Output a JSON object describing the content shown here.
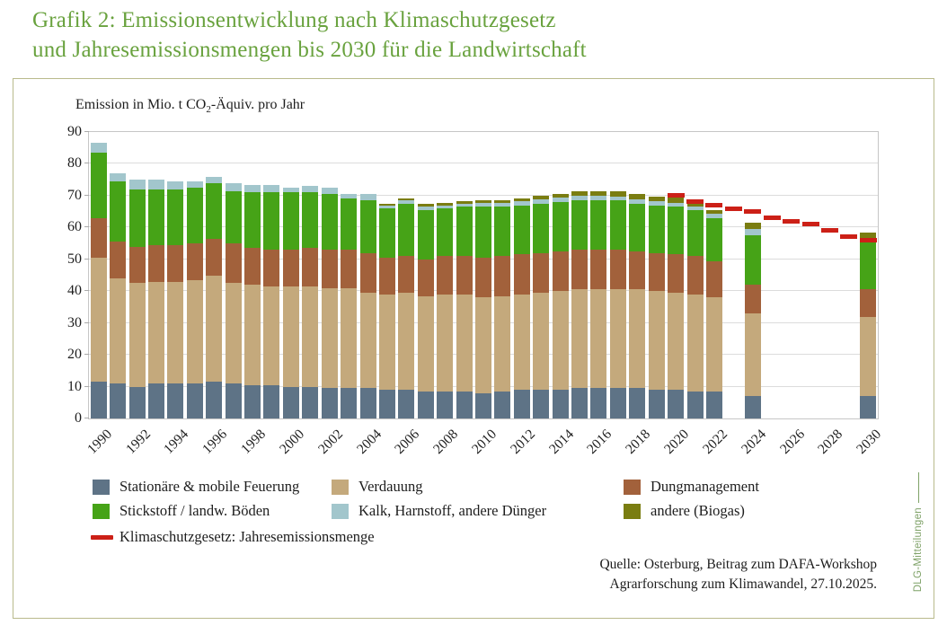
{
  "title": {
    "line1": "Grafik 2: Emissionsentwicklung nach Klimaschutzgesetz",
    "line2": "und Jahresemissionsmengen bis 2030 für die Landwirtschaft"
  },
  "axis_title": {
    "prefix": "Emission in Mio. t CO",
    "sub": "2",
    "suffix": "-Äquiv. pro Jahr"
  },
  "chart_data": {
    "type": "bar",
    "stacked": true,
    "title": "Emissionsentwicklung nach Klimaschutzgesetz und Jahresemissionsmengen bis 2030 für die Landwirtschaft",
    "ylabel": "Emission in Mio. t CO2-Äquiv. pro Jahr",
    "ylim": [
      0,
      90
    ],
    "y_tick_step": 10,
    "x_range": [
      1990,
      2030
    ],
    "x_tick_step": 2,
    "grid": true,
    "legend_position": "bottom",
    "bar_years": [
      1990,
      1991,
      1992,
      1993,
      1994,
      1995,
      1996,
      1997,
      1998,
      1999,
      2000,
      2001,
      2002,
      2003,
      2004,
      2005,
      2006,
      2007,
      2008,
      2009,
      2010,
      2011,
      2012,
      2013,
      2014,
      2015,
      2016,
      2017,
      2018,
      2019,
      2020,
      2021,
      2022,
      2024,
      2030
    ],
    "series": [
      {
        "name": "Stationäre & mobile Feuerung",
        "color": "#5e7386",
        "values": [
          11.5,
          11,
          10,
          11,
          11,
          11,
          11.5,
          11,
          10.5,
          10.5,
          10,
          10,
          9.5,
          9.5,
          9.5,
          9,
          9,
          8.5,
          8.5,
          8.5,
          8,
          8.5,
          9,
          9,
          9,
          9.5,
          9.5,
          9.5,
          9.5,
          9,
          9,
          8.5,
          8.5,
          7,
          7
        ]
      },
      {
        "name": "Verdauung",
        "color": "#c4a97c",
        "values": [
          39,
          33,
          32.5,
          32,
          32,
          32.5,
          33.5,
          31.5,
          31.5,
          31,
          31.5,
          31.5,
          31.5,
          31.5,
          30,
          30,
          30.5,
          30,
          30.5,
          30.5,
          30,
          30,
          30,
          30.5,
          31,
          31,
          31,
          31,
          31,
          31,
          30.5,
          30.5,
          29.5,
          26,
          25
        ]
      },
      {
        "name": "Dungmanagement",
        "color": "#a2613b",
        "values": [
          12.5,
          11.5,
          11.5,
          11.5,
          11.5,
          11.5,
          11.5,
          12.5,
          11.5,
          11.5,
          11.5,
          12,
          12,
          12,
          12.5,
          11.5,
          11.5,
          11.5,
          12,
          12,
          12.5,
          12.5,
          12.5,
          12.5,
          12.5,
          12.5,
          12.5,
          12.5,
          12,
          12,
          12,
          12,
          11.5,
          9,
          8.5
        ]
      },
      {
        "name": "Stickstoff / landw. Böden",
        "color": "#46a317",
        "values": [
          20.5,
          19,
          18,
          17.5,
          17.5,
          17.5,
          17.5,
          16.5,
          17.5,
          18,
          18,
          17.5,
          17.5,
          16,
          16.5,
          15.5,
          16.5,
          15.5,
          15,
          15.5,
          16,
          15.5,
          15.5,
          15.5,
          15.5,
          15.5,
          15.5,
          15.5,
          15,
          15,
          15,
          14.5,
          13.5,
          15.5,
          15
        ]
      },
      {
        "name": "Kalk, Harnstoff, andere Dünger",
        "color": "#a2c6cc",
        "values": [
          3,
          2.5,
          3,
          3,
          2.5,
          2,
          2,
          2.5,
          2.5,
          2.5,
          1.5,
          2,
          2,
          1.5,
          2,
          1,
          1,
          1,
          1,
          1,
          1.2,
          1.2,
          1.2,
          1.3,
          1.3,
          1.4,
          1.4,
          1.3,
          1.3,
          1.3,
          1.3,
          1.2,
          1.2,
          2,
          1
        ]
      },
      {
        "name": "andere (Biogas)",
        "color": "#7a7d11",
        "values": [
          0,
          0,
          0,
          0,
          0,
          0,
          0,
          0,
          0,
          0,
          0,
          0,
          0,
          0,
          0,
          0.5,
          0.7,
          0.8,
          0.8,
          0.8,
          0.8,
          1,
          1,
          1.2,
          1.3,
          1.6,
          1.6,
          1.7,
          1.7,
          1.5,
          1.7,
          1.3,
          1.3,
          2,
          2
        ]
      }
    ],
    "ksg_line": {
      "name": "Klimaschutzgesetz: Jahresemissionsmenge",
      "color": "#cc2017",
      "years": [
        2020,
        2021,
        2022,
        2023,
        2024,
        2025,
        2026,
        2027,
        2028,
        2029,
        2030
      ],
      "values": [
        70,
        68,
        67,
        66,
        65,
        63,
        62,
        61,
        59,
        57,
        56
      ]
    },
    "y_tick_labels": [
      "0",
      "10",
      "20",
      "30",
      "40",
      "50",
      "60",
      "70",
      "80",
      "90"
    ],
    "x_tick_labels": [
      "1990",
      "1992",
      "1994",
      "1996",
      "1998",
      "2000",
      "2002",
      "2004",
      "2006",
      "2008",
      "2010",
      "2012",
      "2014",
      "2016",
      "2018",
      "2020",
      "2022",
      "2024",
      "2026",
      "2028",
      "2030"
    ]
  },
  "source": {
    "line1": "Quelle: Osterburg, Beitrag zum DAFA-Workshop",
    "line2": "Agrarforschung zum Klimawandel, 27.10.2025."
  },
  "watermark": "DLG-Mitteilungen"
}
